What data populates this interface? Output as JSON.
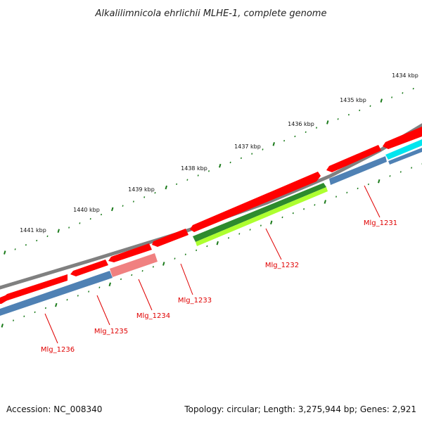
{
  "title": "Alkalilimnicola ehrlichii MLHE-1, complete genome",
  "footer": {
    "accession": "Accession: NC_008340",
    "summary": "Topology: circular; Length: 3,275,944 bp; Genes: 2,921"
  },
  "ticks": [
    {
      "label": "1434 kbp"
    },
    {
      "label": "1435 kbp"
    },
    {
      "label": "1436 kbp"
    },
    {
      "label": "1437 kbp"
    },
    {
      "label": "1438 kbp"
    },
    {
      "label": "1439 kbp"
    },
    {
      "label": "1440 kbp"
    },
    {
      "label": "1441 kbp"
    }
  ],
  "genes": [
    {
      "label": "Mlg_1231"
    },
    {
      "label": "Mlg_1232"
    },
    {
      "label": "Mlg_1233"
    },
    {
      "label": "Mlg_1234"
    },
    {
      "label": "Mlg_1235"
    },
    {
      "label": "Mlg_1236"
    }
  ],
  "colors": {
    "backbone": "#808080",
    "cds": "#ff0000",
    "blue_feature": "#4f81b4",
    "cyan_feature": "#00e5ee",
    "green_feature": "#2e8b2e",
    "lime_feature": "#adff2f",
    "pink_feature": "#f08080",
    "tick": "#1a7a1a",
    "label": "#e00000"
  }
}
